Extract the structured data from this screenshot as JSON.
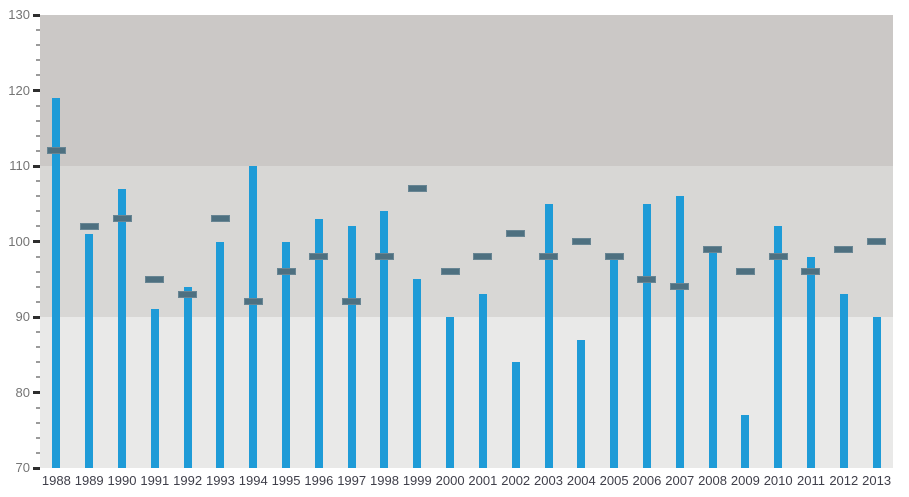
{
  "chart_data": {
    "type": "bar",
    "title": "",
    "xlabel": "",
    "ylabel": "",
    "categories": [
      "1988",
      "1989",
      "1990",
      "1991",
      "1992",
      "1993",
      "1994",
      "1995",
      "1996",
      "1997",
      "1998",
      "1999",
      "2000",
      "2001",
      "2002",
      "2003",
      "2004",
      "2005",
      "2006",
      "2007",
      "2008",
      "2009",
      "2010",
      "2011",
      "2012",
      "2013"
    ],
    "series": [
      {
        "name": "value-bar",
        "type": "bar",
        "color": "#1e9bd7",
        "values": [
          119,
          101,
          107,
          91,
          94,
          100,
          110,
          100,
          103,
          102,
          104,
          95,
          90,
          93,
          84,
          105,
          87,
          98,
          105,
          106,
          99,
          77,
          102,
          98,
          93,
          90
        ]
      },
      {
        "name": "target-marker",
        "type": "dash-marker",
        "color": "#4e7080",
        "values": [
          112,
          102,
          103,
          95,
          93,
          103,
          92,
          96,
          98,
          92,
          98,
          107,
          96,
          98,
          101,
          98,
          100,
          98,
          95,
          94,
          99,
          96,
          98,
          96,
          99,
          100
        ]
      }
    ],
    "ylim": [
      70,
      130
    ],
    "y_major_ticks": [
      130,
      120,
      110,
      100,
      90,
      80,
      70
    ],
    "y_minor_step": 2,
    "grid": "off",
    "legend": "none",
    "bands": [
      {
        "from": 110,
        "to": 130,
        "color": "#cbc8c6"
      },
      {
        "from": 90,
        "to": 110,
        "color": "#d8d7d5"
      },
      {
        "from": 70,
        "to": 90,
        "color": "#e9e9e8"
      }
    ],
    "axis_style": {
      "y_label_color": "#757575",
      "x_label_color": "#3f3f4a",
      "major_tick_color": "#2e2e2e",
      "minor_tick_color": "#9b9b9b"
    }
  }
}
